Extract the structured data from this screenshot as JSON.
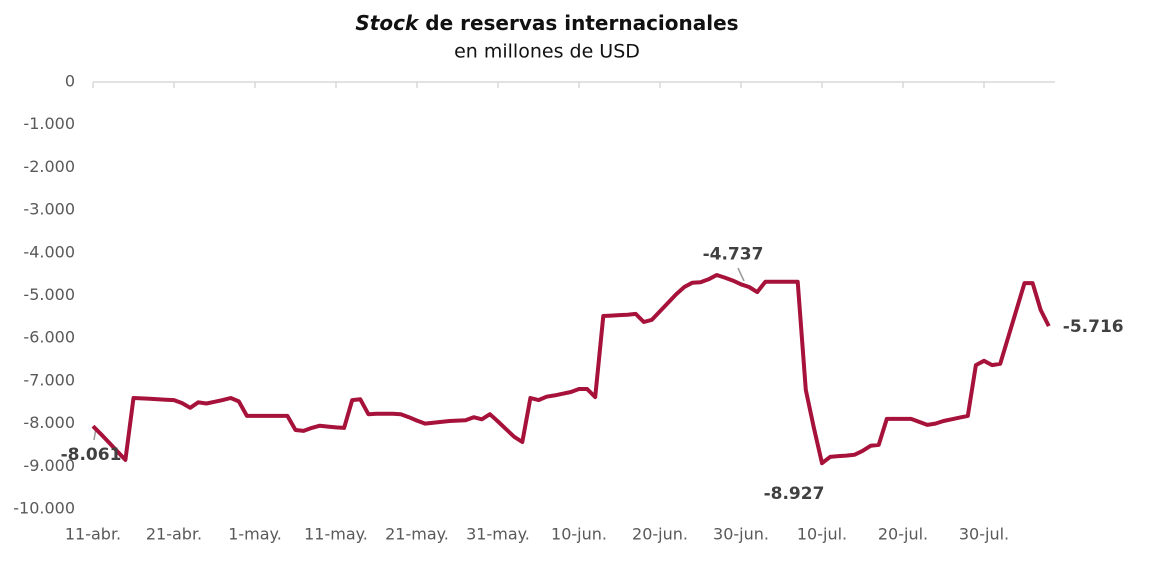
{
  "chart_data": {
    "type": "line",
    "title": {
      "italic": "Stock",
      "rest": "de reservas internacionales"
    },
    "subtitle": "en millones de USD",
    "categories": [
      "11-abr.",
      null,
      null,
      null,
      null,
      null,
      null,
      null,
      null,
      null,
      "21-abr.",
      null,
      null,
      null,
      null,
      null,
      null,
      null,
      null,
      null,
      "1-may.",
      null,
      null,
      null,
      null,
      null,
      null,
      null,
      null,
      null,
      "11-may.",
      null,
      null,
      null,
      null,
      null,
      null,
      null,
      null,
      null,
      "21-may.",
      null,
      null,
      null,
      null,
      null,
      null,
      null,
      null,
      null,
      "31-may.",
      null,
      null,
      null,
      null,
      null,
      null,
      null,
      null,
      null,
      "10-jun.",
      null,
      null,
      null,
      null,
      null,
      null,
      null,
      null,
      null,
      "20-jun.",
      null,
      null,
      null,
      null,
      null,
      null,
      null,
      null,
      null,
      "30-jun.",
      null,
      null,
      null,
      null,
      null,
      null,
      null,
      null,
      null,
      "10-jul.",
      null,
      null,
      null,
      null,
      null,
      null,
      null,
      null,
      null,
      "20-jul.",
      null,
      null,
      null,
      null,
      null,
      null,
      null,
      null,
      null,
      "30-jul.",
      null,
      null,
      null,
      null,
      null,
      null,
      null,
      null
    ],
    "values": [
      -8061,
      -8250,
      -8450,
      -8650,
      -8850,
      -7400,
      -7410,
      -7420,
      -7430,
      -7440,
      -7450,
      -7520,
      -7630,
      -7500,
      -7530,
      -7490,
      -7450,
      -7400,
      -7480,
      -7820,
      -7820,
      -7820,
      -7820,
      -7820,
      -7820,
      -8150,
      -8170,
      -8100,
      -8050,
      -8070,
      -8090,
      -8100,
      -7450,
      -7430,
      -7780,
      -7770,
      -7770,
      -7770,
      -7780,
      -7850,
      -7930,
      -8000,
      -7980,
      -7960,
      -7940,
      -7930,
      -7920,
      -7850,
      -7900,
      -7780,
      -7950,
      -8130,
      -8310,
      -8430,
      -7400,
      -7450,
      -7370,
      -7340,
      -7300,
      -7260,
      -7190,
      -7190,
      -7380,
      -5480,
      -5470,
      -5460,
      -5450,
      -5430,
      -5620,
      -5570,
      -5370,
      -5170,
      -4970,
      -4800,
      -4700,
      -4690,
      -4620,
      -4520,
      -4580,
      -4650,
      -4737,
      -4800,
      -4920,
      -4680,
      -4680,
      -4680,
      -4680,
      -4680,
      -7210,
      -8100,
      -8927,
      -8780,
      -8760,
      -8750,
      -8730,
      -8640,
      -8520,
      -8500,
      -7890,
      -7890,
      -7890,
      -7890,
      -7960,
      -8030,
      -8000,
      -7940,
      -7900,
      -7860,
      -7820,
      -6630,
      -6530,
      -6630,
      -6600,
      -5970,
      -5340,
      -4710,
      -4710,
      -5340,
      -5716
    ],
    "value_labels": [
      "-8.061",
      null,
      null,
      null,
      null,
      null,
      null,
      null,
      null,
      null,
      null,
      null,
      null,
      null,
      null,
      null,
      null,
      null,
      null,
      null,
      null,
      null,
      null,
      null,
      null,
      null,
      null,
      null,
      null,
      null,
      null,
      null,
      null,
      null,
      null,
      null,
      null,
      null,
      null,
      null,
      null,
      null,
      null,
      null,
      null,
      null,
      null,
      null,
      null,
      null,
      null,
      null,
      null,
      null,
      null,
      null,
      null,
      null,
      null,
      null,
      null,
      null,
      null,
      null,
      null,
      null,
      null,
      null,
      null,
      null,
      null,
      null,
      null,
      null,
      null,
      null,
      null,
      null,
      null,
      null,
      "-4.737",
      null,
      null,
      null,
      null,
      null,
      null,
      null,
      null,
      null,
      "-8.927",
      null,
      null,
      null,
      null,
      null,
      null,
      null,
      null,
      null,
      null,
      null,
      null,
      null,
      null,
      null,
      null,
      null,
      null,
      null,
      null,
      null,
      null,
      null,
      null,
      null,
      null,
      null,
      "-5.716"
    ],
    "color": "#a6123a",
    "ylim": [
      -10000,
      0
    ],
    "yticks": [
      0,
      {
        "value": -1000,
        "label": "-1.000"
      },
      {
        "value": -2000,
        "label": "-2.000"
      },
      {
        "value": -3000,
        "label": "-3.000"
      },
      {
        "value": -4000,
        "label": "-4.000"
      },
      {
        "value": -5000,
        "label": "-5.000"
      },
      {
        "value": -6000,
        "label": "-6.000"
      },
      {
        "value": -7000,
        "label": "-7.000"
      },
      {
        "value": -8000,
        "label": "-8.000"
      },
      {
        "value": -9000,
        "label": "-9.000"
      },
      {
        "value": -10000,
        "label": "-10.000"
      }
    ],
    "grid": false
  }
}
